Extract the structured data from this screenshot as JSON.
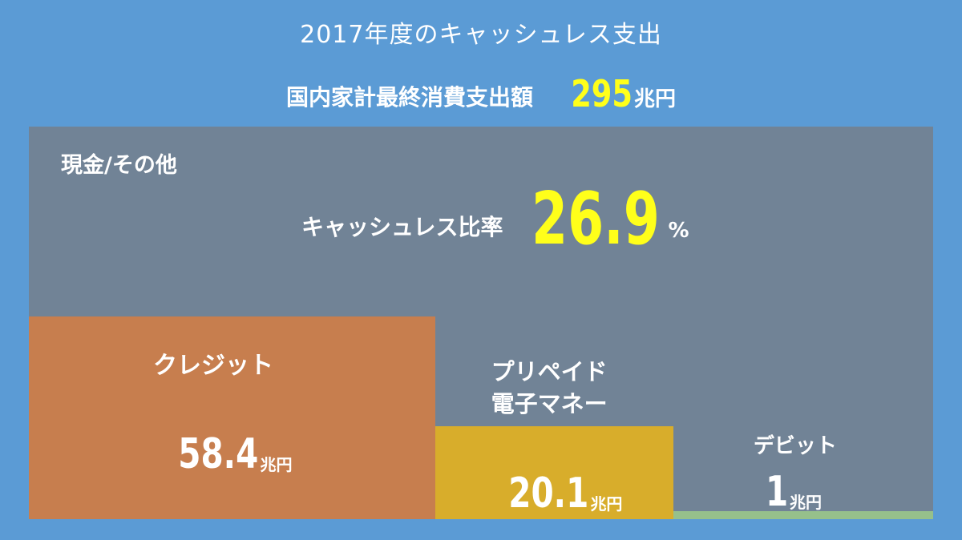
{
  "title": "2017年度のキャッシュレス支出",
  "total": {
    "label": "国内家計最終消費支出額",
    "value": "295",
    "unit": "兆円"
  },
  "cash_label": "現金/その他",
  "ratio": {
    "label": "キャッシュレス比率",
    "value": "26.9",
    "unit": "%"
  },
  "colors": {
    "background": "#5b9bd5",
    "cash": "#718396",
    "credit": "#c77e4e",
    "prepaid": "#d8ad2b",
    "debit": "#96c08b",
    "highlight": "#ffff1a"
  },
  "chart_data": {
    "type": "treemap",
    "total": 295,
    "unit": "兆円",
    "segments": [
      {
        "name": "クレジット",
        "value": 58.4,
        "value_label": "58.4",
        "color": "#c77e4e"
      },
      {
        "name": "プリペイド\n電子マネー",
        "value": 20.1,
        "value_label": "20.1",
        "color": "#d8ad2b"
      },
      {
        "name": "デビット",
        "value": 1,
        "value_label": "1",
        "color": "#96c08b"
      }
    ]
  }
}
